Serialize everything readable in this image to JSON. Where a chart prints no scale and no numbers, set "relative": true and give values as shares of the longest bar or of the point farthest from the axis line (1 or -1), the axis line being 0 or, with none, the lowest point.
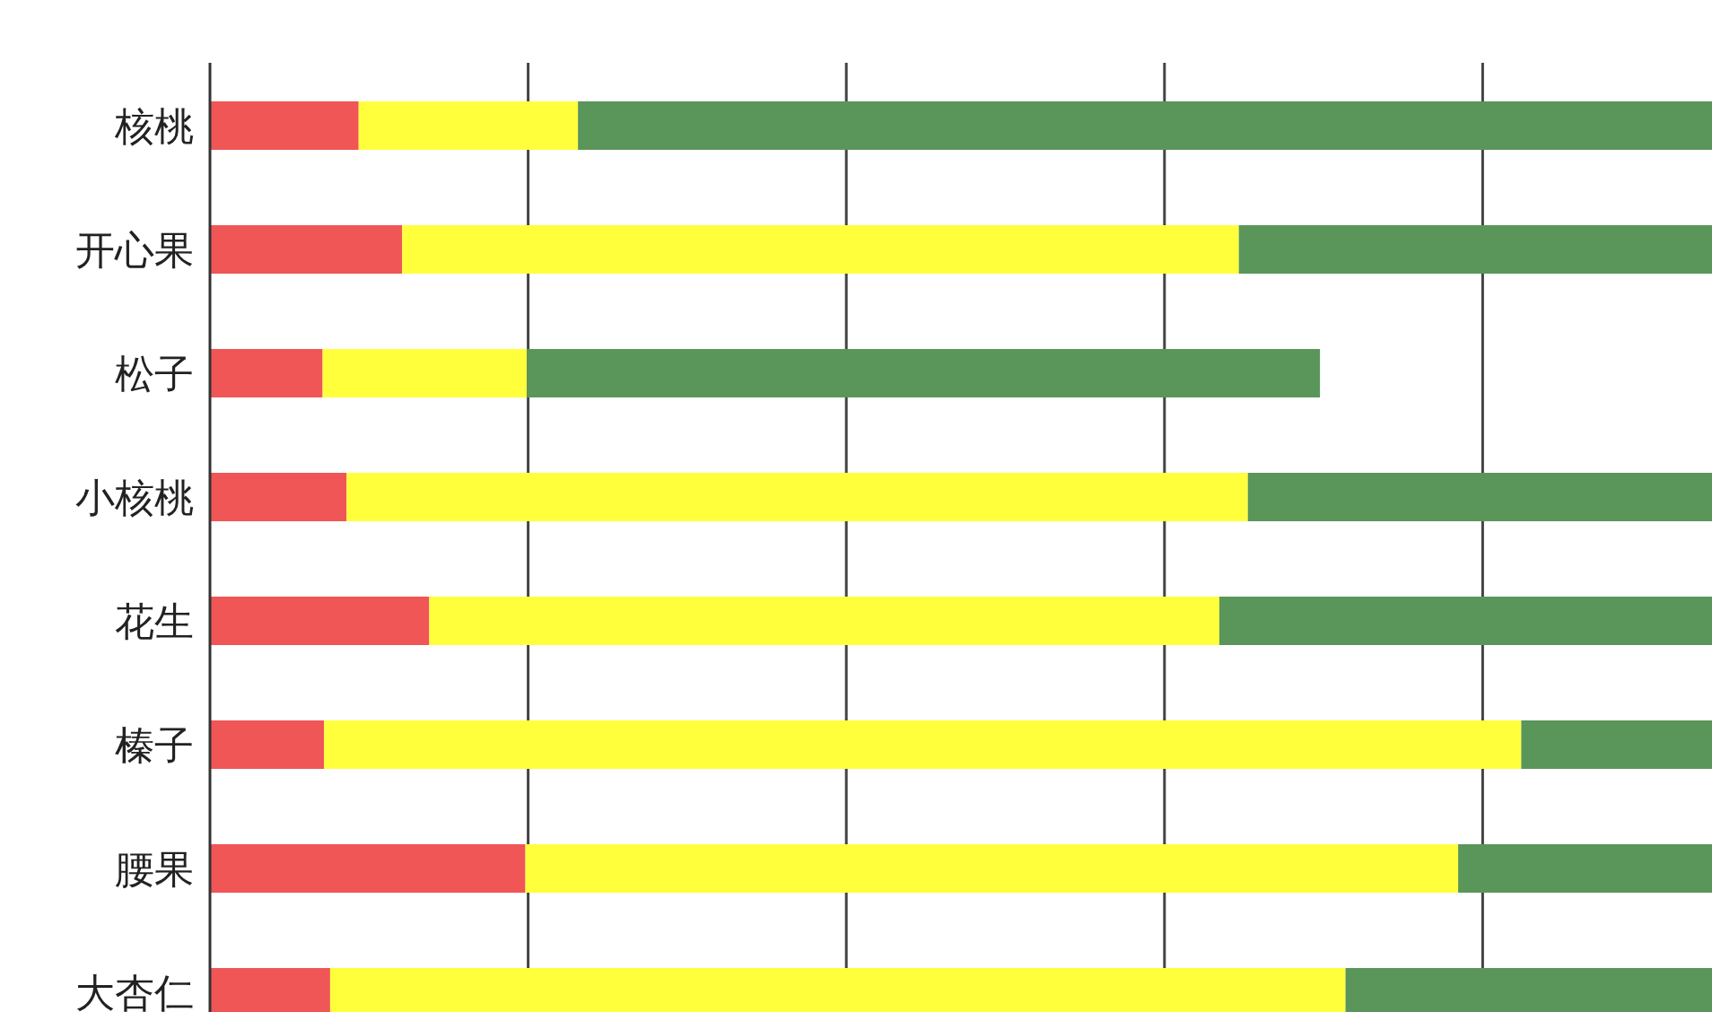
{
  "chart_data": {
    "type": "bar",
    "orientation": "horizontal",
    "stacked": true,
    "relative": true,
    "grid": "x",
    "categories": [
      "核桃",
      "开心果",
      "松子",
      "小核桃",
      "花生",
      "榛子",
      "腰果",
      "大杏仁"
    ],
    "series": [
      {
        "color": "#f05656",
        "values": [
          0.099,
          0.128,
          0.075,
          0.091,
          0.146,
          0.076,
          0.21,
          0.08
        ]
      },
      {
        "color": "#ffff3c",
        "values": [
          0.146,
          0.557,
          0.136,
          0.6,
          0.526,
          0.797,
          0.621,
          0.676
        ]
      },
      {
        "color": "#5a965a",
        "values": [
          0.755,
          0.315,
          0.528,
          0.309,
          0.328,
          0.127,
          0.169,
          0.244
        ]
      }
    ]
  }
}
